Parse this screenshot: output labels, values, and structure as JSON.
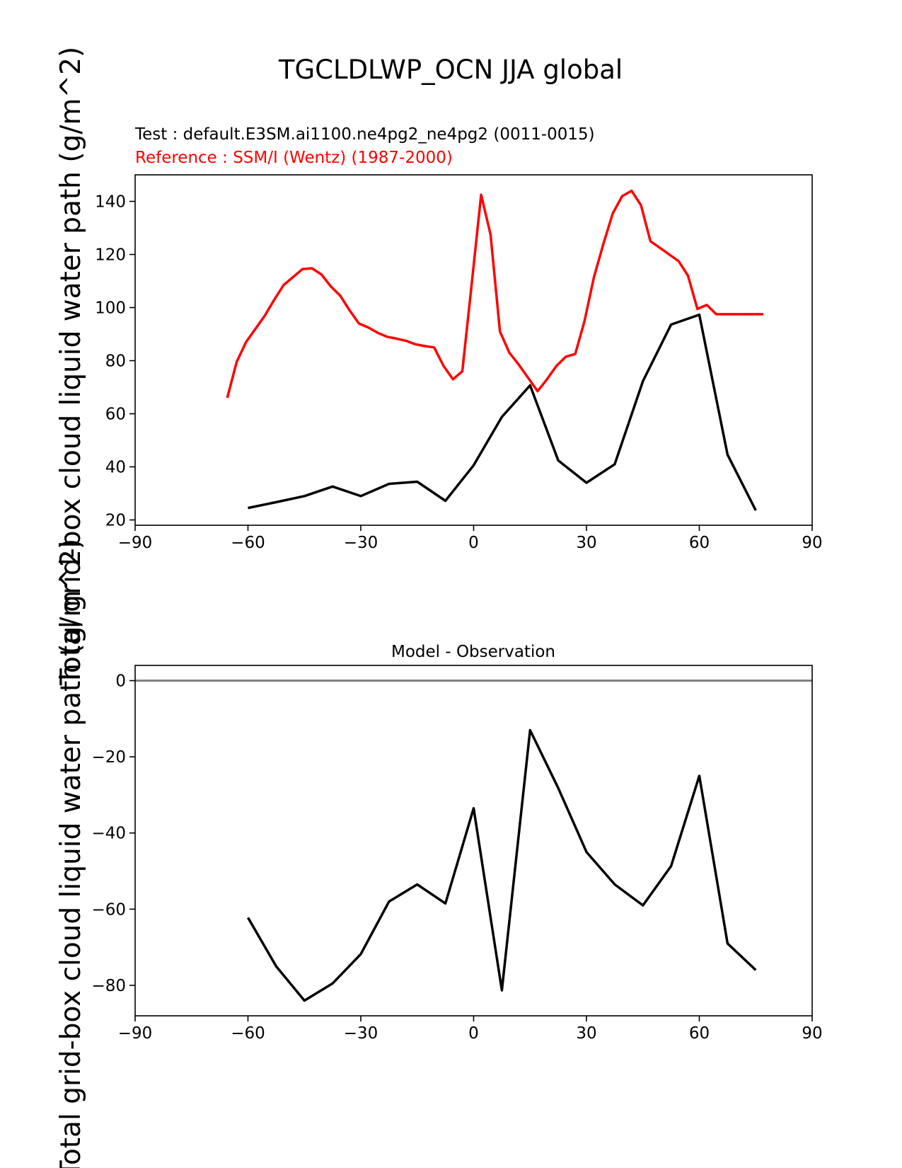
{
  "figure": {
    "suptitle": "TGCLDLWP_OCN JJA global"
  },
  "chart_data": [
    {
      "type": "line",
      "title": "",
      "subtitles": {
        "test": "Test : default.E3SM.ai1100.ne4pg2_ne4pg2 (0011-0015)",
        "reference": "Reference : SSM/I (Wentz) (1987-2000)"
      },
      "xlabel": "",
      "ylabel": "Total grid-box cloud liquid water path (g/m^2)",
      "xlim": [
        -90,
        90
      ],
      "ylim": [
        18,
        150
      ],
      "xticks": [
        -90,
        -60,
        -30,
        0,
        30,
        60,
        90
      ],
      "xtick_labels": [
        "−90",
        "−60",
        "−30",
        "0",
        "30",
        "60",
        "90"
      ],
      "yticks": [
        20,
        40,
        60,
        80,
        100,
        120,
        140
      ],
      "ytick_labels": [
        "20",
        "40",
        "60",
        "80",
        "100",
        "120",
        "140"
      ],
      "series": [
        {
          "name": "Reference : SSM/I (Wentz) (1987-2000)",
          "color": "#ff0000",
          "x": [
            -65.5,
            -63,
            -60.5,
            -58,
            -55.5,
            -53,
            -50.5,
            -48,
            -45.5,
            -43,
            -40.5,
            -38,
            -35.5,
            -33,
            -30.5,
            -28,
            -25.5,
            -23,
            -20.5,
            -18,
            -15.5,
            -13,
            -10.5,
            -8,
            -5.5,
            -3,
            -0.5,
            2,
            4.5,
            7,
            9.5,
            12,
            14.5,
            17,
            19.5,
            22,
            24.5,
            27,
            29.5,
            32,
            34.5,
            37,
            39.5,
            42,
            44.5,
            47,
            49.5,
            52,
            54.5,
            57,
            59.5,
            62,
            64.5,
            67,
            69.5,
            72,
            74.5,
            77
          ],
          "values": [
            66,
            79.5,
            87,
            92,
            97,
            103,
            108.5,
            111.5,
            114.5,
            114.8,
            112.5,
            108,
            104.5,
            99,
            94,
            92.5,
            90.5,
            89,
            88.3,
            87.5,
            86.2,
            85.5,
            85,
            78,
            73,
            76,
            109,
            142.5,
            127.5,
            91,
            83,
            78.5,
            73.5,
            68.5,
            73,
            78,
            81.5,
            82.5,
            95,
            111.5,
            124,
            135.5,
            142,
            144,
            138.5,
            125,
            122.5,
            120,
            117.5,
            112,
            99.5,
            101,
            97.5,
            97.5,
            97.5,
            97.5,
            97.5,
            97.5
          ]
        },
        {
          "name": "Test : default.E3SM.ai1100.ne4pg2_ne4pg2 (0011-0015)",
          "color": "#000000",
          "x": [
            -60,
            -52.5,
            -45,
            -37.5,
            -30,
            -22.5,
            -15,
            -7.5,
            0,
            7.5,
            15,
            22.5,
            30,
            37.5,
            45,
            52.5,
            60,
            67.5,
            75
          ],
          "values": [
            24.5,
            26.7,
            29,
            32.6,
            29,
            33.6,
            34.4,
            27.2,
            40.6,
            58.8,
            70.7,
            42.4,
            34,
            41,
            72.3,
            93.6,
            97.3,
            44.6,
            23.6
          ]
        }
      ]
    },
    {
      "type": "line",
      "title": "Model - Observation",
      "xlabel": "",
      "ylabel": "Total grid-box cloud liquid water path (g/m^2)",
      "xlim": [
        -90,
        90
      ],
      "ylim": [
        -88,
        4
      ],
      "xticks": [
        -90,
        -60,
        -30,
        0,
        30,
        60,
        90
      ],
      "xtick_labels": [
        "−90",
        "−60",
        "−30",
        "0",
        "30",
        "60",
        "90"
      ],
      "yticks": [
        0,
        -20,
        -40,
        -60,
        -80
      ],
      "ytick_labels": [
        "0",
        "−20",
        "−40",
        "−60",
        "−80"
      ],
      "reference_line": {
        "y": 0,
        "color": "#808080"
      },
      "series": [
        {
          "name": "Model - Observation",
          "color": "#000000",
          "x": [
            -60,
            -52.5,
            -45,
            -37.5,
            -30,
            -22.5,
            -15,
            -7.5,
            0,
            7.5,
            15,
            22.5,
            30,
            37.5,
            45,
            52.5,
            60,
            67.5,
            75
          ],
          "values": [
            -62.2,
            -75,
            -84,
            -79.5,
            -71.8,
            -58,
            -53.5,
            -58.5,
            -33.5,
            -81.3,
            -13,
            -28.2,
            -45,
            -53.5,
            -59,
            -48.7,
            -25,
            -69,
            -76
          ]
        }
      ]
    }
  ]
}
